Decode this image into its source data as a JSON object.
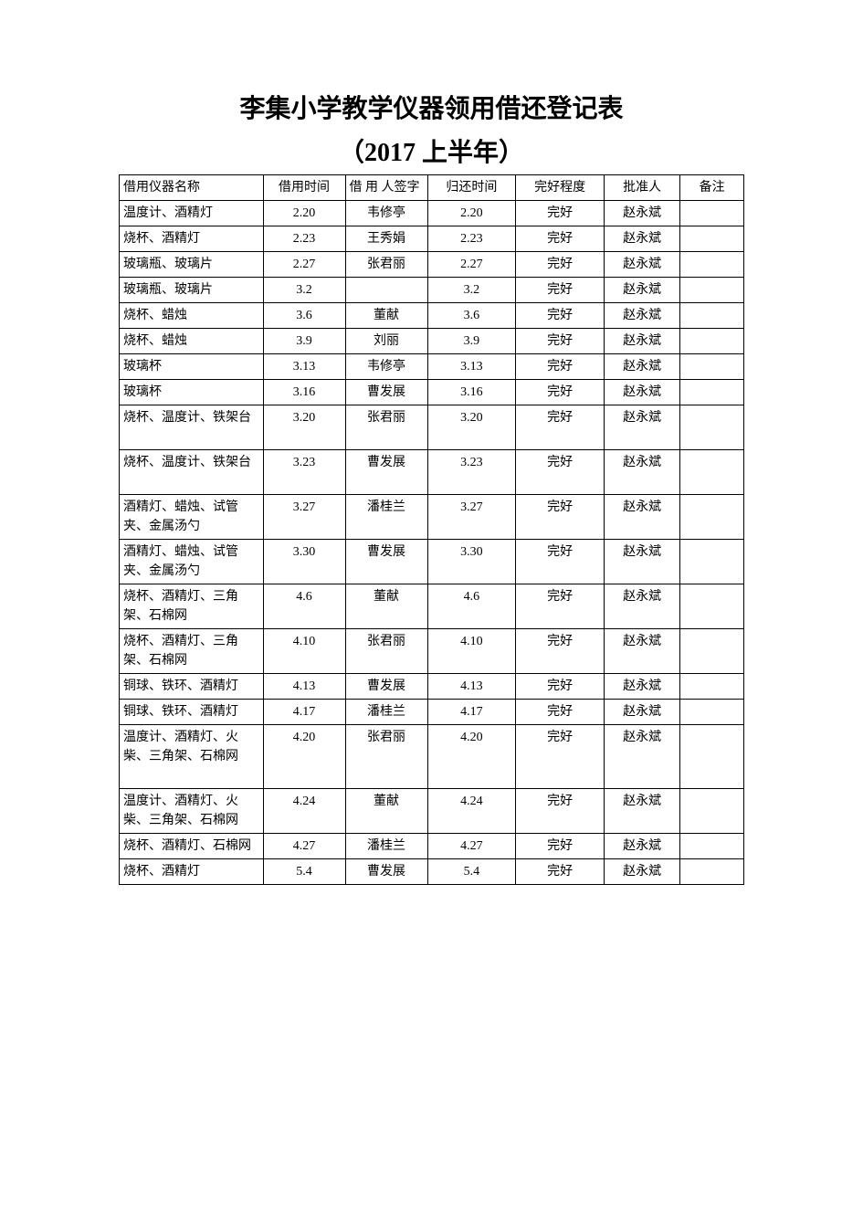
{
  "document": {
    "title": "李集小学教学仪器领用借还登记表",
    "subtitle": "（2017 上半年）",
    "background_color": "#ffffff",
    "text_color": "#000000",
    "border_color": "#000000",
    "title_fontsize": 28,
    "cell_fontsize": 14
  },
  "table": {
    "columns": [
      {
        "key": "item",
        "label": "借用仪器名称",
        "align": "left",
        "width_pct": 22
      },
      {
        "key": "borrow_time",
        "label": "借用时间",
        "align": "center",
        "width_pct": 12
      },
      {
        "key": "borrower",
        "label": "借 用 人签字",
        "align": "left",
        "width_pct": 12
      },
      {
        "key": "return_time",
        "label": "归还时间",
        "align": "center",
        "width_pct": 13
      },
      {
        "key": "condition",
        "label": "完好程度",
        "align": "center",
        "width_pct": 13
      },
      {
        "key": "approver",
        "label": "批准人",
        "align": "center",
        "width_pct": 11
      },
      {
        "key": "remark",
        "label": "备注",
        "align": "center",
        "width_pct": 9
      }
    ],
    "rows": [
      {
        "item": "温度计、酒精灯",
        "borrow_time": "2.20",
        "borrower": "韦修亭",
        "return_time": "2.20",
        "condition": "完好",
        "approver": "赵永斌",
        "remark": ""
      },
      {
        "item": "烧杯、酒精灯",
        "borrow_time": "2.23",
        "borrower": "王秀娟",
        "return_time": "2.23",
        "condition": "完好",
        "approver": "赵永斌",
        "remark": ""
      },
      {
        "item": "玻璃瓶、玻璃片",
        "borrow_time": "2.27",
        "borrower": "张君丽",
        "return_time": "2.27",
        "condition": "完好",
        "approver": "赵永斌",
        "remark": ""
      },
      {
        "item": "玻璃瓶、玻璃片",
        "borrow_time": "3.2",
        "borrower": "",
        "return_time": "3.2",
        "condition": "完好",
        "approver": "赵永斌",
        "remark": ""
      },
      {
        "item": "烧杯、蜡烛",
        "borrow_time": "3.6",
        "borrower": "董献",
        "return_time": "3.6",
        "condition": "完好",
        "approver": "赵永斌",
        "remark": ""
      },
      {
        "item": "烧杯、蜡烛",
        "borrow_time": "3.9",
        "borrower": "刘丽",
        "return_time": "3.9",
        "condition": "完好",
        "approver": "赵永斌",
        "remark": ""
      },
      {
        "item": "玻璃杯",
        "borrow_time": "3.13",
        "borrower": "韦修亭",
        "return_time": "3.13",
        "condition": "完好",
        "approver": "赵永斌",
        "remark": ""
      },
      {
        "item": "玻璃杯",
        "borrow_time": "3.16",
        "borrower": "曹发展",
        "return_time": "3.16",
        "condition": "完好",
        "approver": "赵永斌",
        "remark": ""
      },
      {
        "item": "烧杯、温度计、铁架台",
        "borrow_time": "3.20",
        "borrower": "张君丽",
        "return_time": "3.20",
        "condition": "完好",
        "approver": "赵永斌",
        "remark": "",
        "tall": true
      },
      {
        "item": "烧杯、温度计、铁架台",
        "borrow_time": "3.23",
        "borrower": "曹发展",
        "return_time": "3.23",
        "condition": "完好",
        "approver": "赵永斌",
        "remark": "",
        "tall": true
      },
      {
        "item": "酒精灯、蜡烛、试管夹、金属汤勺",
        "borrow_time": "3.27",
        "borrower": "潘桂兰",
        "return_time": "3.27",
        "condition": "完好",
        "approver": "赵永斌",
        "remark": ""
      },
      {
        "item": "酒精灯、蜡烛、试管夹、金属汤勺",
        "borrow_time": "3.30",
        "borrower": "曹发展",
        "return_time": "3.30",
        "condition": "完好",
        "approver": "赵永斌",
        "remark": ""
      },
      {
        "item": "烧杯、酒精灯、三角架、石棉网",
        "borrow_time": "4.6",
        "borrower": "董献",
        "return_time": "4.6",
        "condition": "完好",
        "approver": "赵永斌",
        "remark": ""
      },
      {
        "item": "烧杯、酒精灯、三角架、石棉网",
        "borrow_time": "4.10",
        "borrower": "张君丽",
        "return_time": "4.10",
        "condition": "完好",
        "approver": "赵永斌",
        "remark": ""
      },
      {
        "item": "铜球、铁环、酒精灯",
        "borrow_time": "4.13",
        "borrower": "曹发展",
        "return_time": "4.13",
        "condition": "完好",
        "approver": "赵永斌",
        "remark": ""
      },
      {
        "item": "铜球、铁环、酒精灯",
        "borrow_time": "4.17",
        "borrower": "潘桂兰",
        "return_time": "4.17",
        "condition": "完好",
        "approver": "赵永斌",
        "remark": ""
      },
      {
        "item": "温度计、酒精灯、火柴、三角架、石棉网",
        "borrow_time": "4.20",
        "borrower": "张君丽",
        "return_time": "4.20",
        "condition": "完好",
        "approver": "赵永斌",
        "remark": "",
        "tall": true
      },
      {
        "item": "温度计、酒精灯、火柴、三角架、石棉网",
        "borrow_time": "4.24",
        "borrower": "董献",
        "return_time": "4.24",
        "condition": "完好",
        "approver": "赵永斌",
        "remark": ""
      },
      {
        "item": "烧杯、酒精灯、石棉网",
        "borrow_time": "4.27",
        "borrower": "潘桂兰",
        "return_time": "4.27",
        "condition": "完好",
        "approver": "赵永斌",
        "remark": ""
      },
      {
        "item": "烧杯、酒精灯",
        "borrow_time": "5.4",
        "borrower": "曹发展",
        "return_time": "5.4",
        "condition": "完好",
        "approver": "赵永斌",
        "remark": ""
      }
    ]
  }
}
